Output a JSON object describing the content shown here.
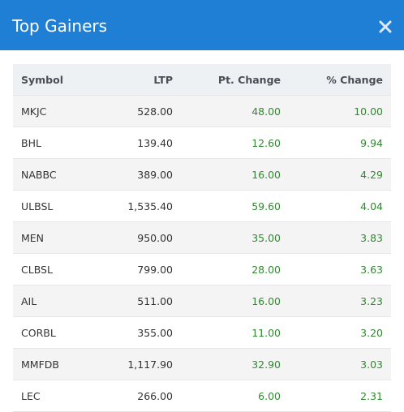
{
  "header": {
    "title": "Top Gainers"
  },
  "table": {
    "columns": [
      "Symbol",
      "LTP",
      "Pt. Change",
      "% Change"
    ],
    "rows": [
      [
        "MKJC",
        "528.00",
        "48.00",
        "10.00"
      ],
      [
        "BHL",
        "139.40",
        "12.60",
        "9.94"
      ],
      [
        "NABBC",
        "389.00",
        "16.00",
        "4.29"
      ],
      [
        "ULBSL",
        "1,535.40",
        "59.60",
        "4.04"
      ],
      [
        "MEN",
        "950.00",
        "35.00",
        "3.83"
      ],
      [
        "CLBSL",
        "799.00",
        "28.00",
        "3.63"
      ],
      [
        "AIL",
        "511.00",
        "16.00",
        "3.23"
      ],
      [
        "CORBL",
        "355.00",
        "11.00",
        "3.20"
      ],
      [
        "MMFDB",
        "1,117.90",
        "32.90",
        "3.03"
      ],
      [
        "LEC",
        "266.00",
        "6.00",
        "2.31"
      ]
    ]
  }
}
